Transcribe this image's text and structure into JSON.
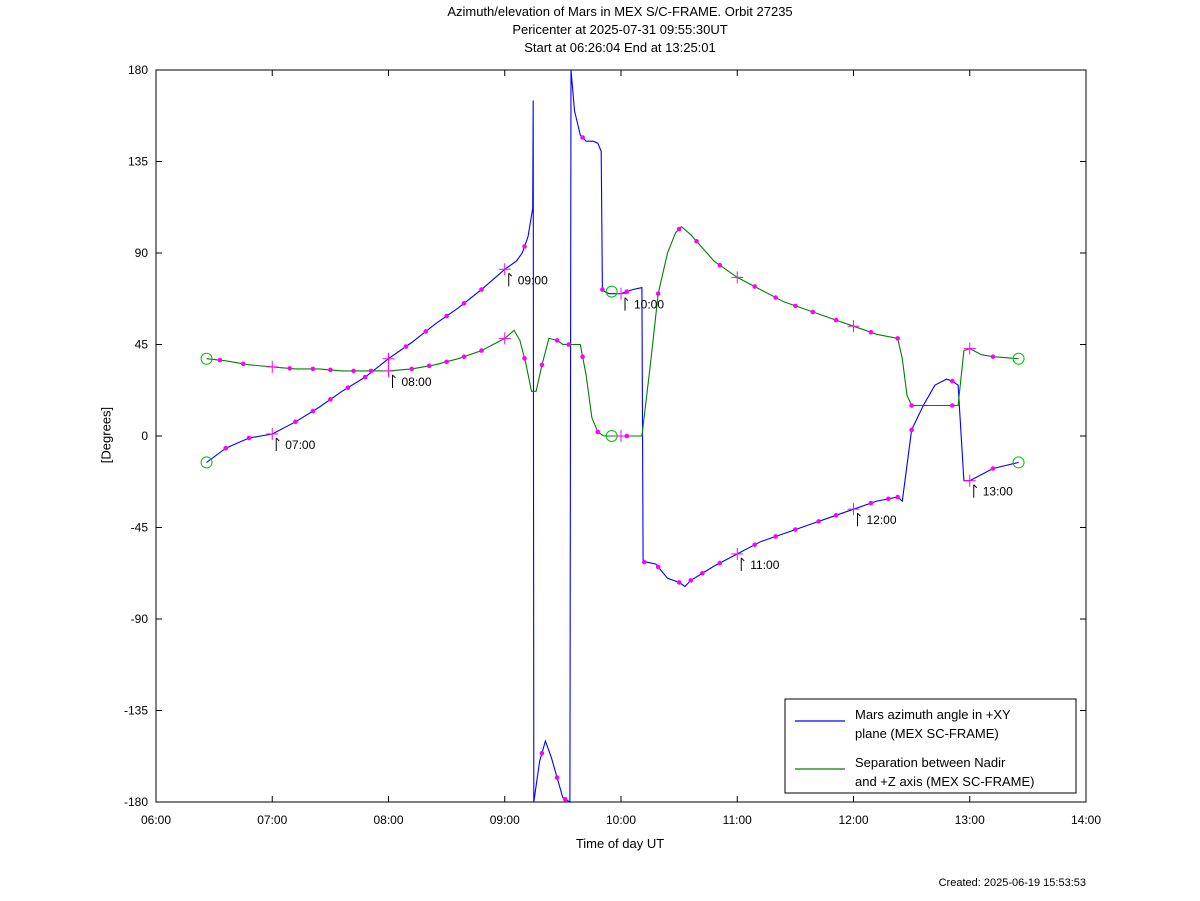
{
  "chart_data": {
    "type": "line",
    "title": "Azimuth/elevation of Mars in MEX S/C-FRAME.  Orbit 27235",
    "subtitle1": "Pericenter at 2025-07-31 09:55:30UT",
    "subtitle2": "Start at 06:26:04 End at 13:25:01",
    "xlabel": "Time of day UT",
    "ylabel": "[Degrees]",
    "created": "Created: 2025-06-19 15:53:53",
    "xlim": [
      6.0,
      14.0
    ],
    "ylim": [
      -180,
      180
    ],
    "xticks": [
      6,
      7,
      8,
      9,
      10,
      11,
      12,
      13,
      14
    ],
    "xtick_labels": [
      "06:00",
      "07:00",
      "08:00",
      "09:00",
      "10:00",
      "11:00",
      "12:00",
      "13:00",
      "14:00"
    ],
    "yticks": [
      180,
      135,
      90,
      45,
      0,
      -45,
      -90,
      -135,
      -180
    ],
    "ytick_labels": [
      "180",
      "135",
      "90",
      "45",
      "0",
      "-45",
      "-90",
      "-135",
      "-180"
    ],
    "grid": false,
    "legend_position": "bottom-right",
    "series": [
      {
        "name": "Mars azimuth angle in +XY plane (MEX SC-FRAME)",
        "legend_lines": [
          "Mars azimuth angle in +XY",
          "plane (MEX SC-FRAME)"
        ],
        "color": "#0000ff",
        "x": [
          6.435,
          6.6,
          6.8,
          7.0,
          7.2,
          7.4,
          7.6,
          7.8,
          8.0,
          8.2,
          8.4,
          8.6,
          8.8,
          9.0,
          9.1,
          9.15,
          9.2,
          9.24,
          9.245,
          9.25,
          9.3,
          9.35,
          9.4,
          9.45,
          9.5,
          9.56,
          9.57,
          9.6,
          9.65,
          9.7,
          9.76,
          9.8,
          9.83,
          9.84,
          9.86,
          9.9,
          9.95,
          10.0,
          10.1,
          10.18,
          10.19,
          10.22,
          10.3,
          10.4,
          10.5,
          10.55,
          10.6,
          10.8,
          11.0,
          11.2,
          11.4,
          11.6,
          11.8,
          12.0,
          12.2,
          12.38,
          12.42,
          12.5,
          12.6,
          12.7,
          12.8,
          12.85,
          12.9,
          12.95,
          13.0,
          13.1,
          13.2,
          13.42
        ],
        "y": [
          -13,
          -6,
          -1,
          1,
          7,
          14,
          22,
          29,
          38,
          46,
          55,
          63,
          72,
          82,
          86,
          90,
          98,
          112,
          165,
          -180,
          -160,
          -150,
          -158,
          -168,
          -178,
          -180,
          180,
          160,
          148,
          145,
          145,
          144,
          140,
          72,
          71,
          70,
          70,
          70,
          72,
          73,
          -62,
          -62,
          -63,
          -70,
          -72,
          -74,
          -71,
          -64,
          -58,
          -52,
          -48,
          -44,
          -40,
          -36,
          -32,
          -30,
          -32,
          3,
          15,
          25,
          28,
          27,
          25,
          -22,
          -22,
          -19,
          -16,
          -13
        ],
        "pattern_label": "azimuth"
      },
      {
        "name": "Separation between Nadir and +Z axis (MEX SC-FRAME)",
        "legend_lines": [
          "Separation between Nadir",
          "and +Z axis (MEX SC-FRAME)"
        ],
        "color": "#008000",
        "x": [
          6.435,
          6.6,
          6.8,
          7.0,
          7.2,
          7.4,
          7.6,
          7.8,
          8.0,
          8.2,
          8.4,
          8.6,
          8.8,
          9.0,
          9.08,
          9.13,
          9.18,
          9.23,
          9.27,
          9.32,
          9.38,
          9.45,
          9.5,
          9.55,
          9.6,
          9.65,
          9.7,
          9.75,
          9.8,
          9.85,
          9.9,
          9.95,
          10.0,
          10.1,
          10.18,
          10.25,
          10.32,
          10.4,
          10.47,
          10.52,
          10.6,
          10.8,
          11.0,
          11.2,
          11.4,
          11.6,
          11.8,
          12.0,
          12.2,
          12.38,
          12.42,
          12.46,
          12.5,
          12.6,
          12.7,
          12.8,
          12.86,
          12.9,
          12.95,
          13.0,
          13.1,
          13.2,
          13.42
        ],
        "y": [
          38,
          37,
          35,
          34,
          33,
          33,
          32,
          32,
          32,
          33,
          35,
          38,
          42,
          48,
          52,
          47,
          36,
          22,
          22,
          35,
          48,
          47,
          45,
          45,
          45,
          45,
          30,
          9,
          2,
          0,
          0,
          0,
          0,
          0,
          0,
          34,
          70,
          90,
          100,
          103,
          99,
          86,
          78,
          72,
          66,
          62,
          58,
          54,
          50,
          48,
          38,
          20,
          15,
          15,
          15,
          15,
          15,
          15,
          42,
          43,
          40,
          39,
          38
        ]
      }
    ],
    "markers": {
      "point_color": "#ff00ff",
      "circle_color": "#00c000",
      "azimuth_dots_x": [
        6.6,
        6.8,
        7.2,
        7.35,
        7.5,
        7.65,
        7.8,
        8.15,
        8.32,
        8.5,
        8.65,
        8.8,
        9.17,
        9.32,
        9.45,
        9.52,
        9.67,
        9.84,
        10.05,
        10.2,
        10.32,
        10.5,
        10.6,
        10.7,
        10.85,
        11.15,
        11.33,
        11.5,
        11.7,
        11.85,
        12.15,
        12.3,
        12.38,
        12.5,
        12.85,
        13.2
      ],
      "separation_dots_x": [
        6.55,
        6.75,
        7.15,
        7.35,
        7.5,
        7.7,
        7.85,
        8.2,
        8.35,
        8.5,
        8.65,
        8.8,
        9.17,
        9.32,
        9.45,
        9.55,
        9.67,
        9.8,
        10.05,
        10.32,
        10.5,
        10.65,
        10.85,
        11.15,
        11.33,
        11.5,
        11.65,
        11.85,
        12.15,
        12.38,
        12.5,
        12.85,
        13.2
      ],
      "crosses": [
        {
          "series": 0,
          "x": 7.0,
          "label": "07:00"
        },
        {
          "series": 0,
          "x": 8.0,
          "label": ""
        },
        {
          "series": 0,
          "x": 9.0,
          "label": "09:00"
        },
        {
          "series": 0,
          "x": 10.0,
          "label": "10:00"
        },
        {
          "series": 0,
          "x": 11.0,
          "label": "11:00"
        },
        {
          "series": 0,
          "x": 12.0,
          "label": "12:00"
        },
        {
          "series": 0,
          "x": 13.0,
          "label": "13:00"
        },
        {
          "series": 1,
          "x": 7.0,
          "label": ""
        },
        {
          "series": 1,
          "x": 8.0,
          "label": "08:00"
        },
        {
          "series": 1,
          "x": 9.0,
          "label": ""
        },
        {
          "series": 1,
          "x": 10.0,
          "label": ""
        },
        {
          "series": 1,
          "x": 11.0,
          "label": ""
        },
        {
          "series": 1,
          "x": 12.0,
          "label": ""
        },
        {
          "series": 1,
          "x": 13.0,
          "label": ""
        }
      ],
      "circles": [
        {
          "x": 6.435,
          "y": -13
        },
        {
          "x": 6.435,
          "y": 38
        },
        {
          "x": 9.92,
          "y": 71
        },
        {
          "x": 9.92,
          "y": 0
        },
        {
          "x": 13.42,
          "y": -13
        },
        {
          "x": 13.42,
          "y": 38
        }
      ]
    }
  }
}
